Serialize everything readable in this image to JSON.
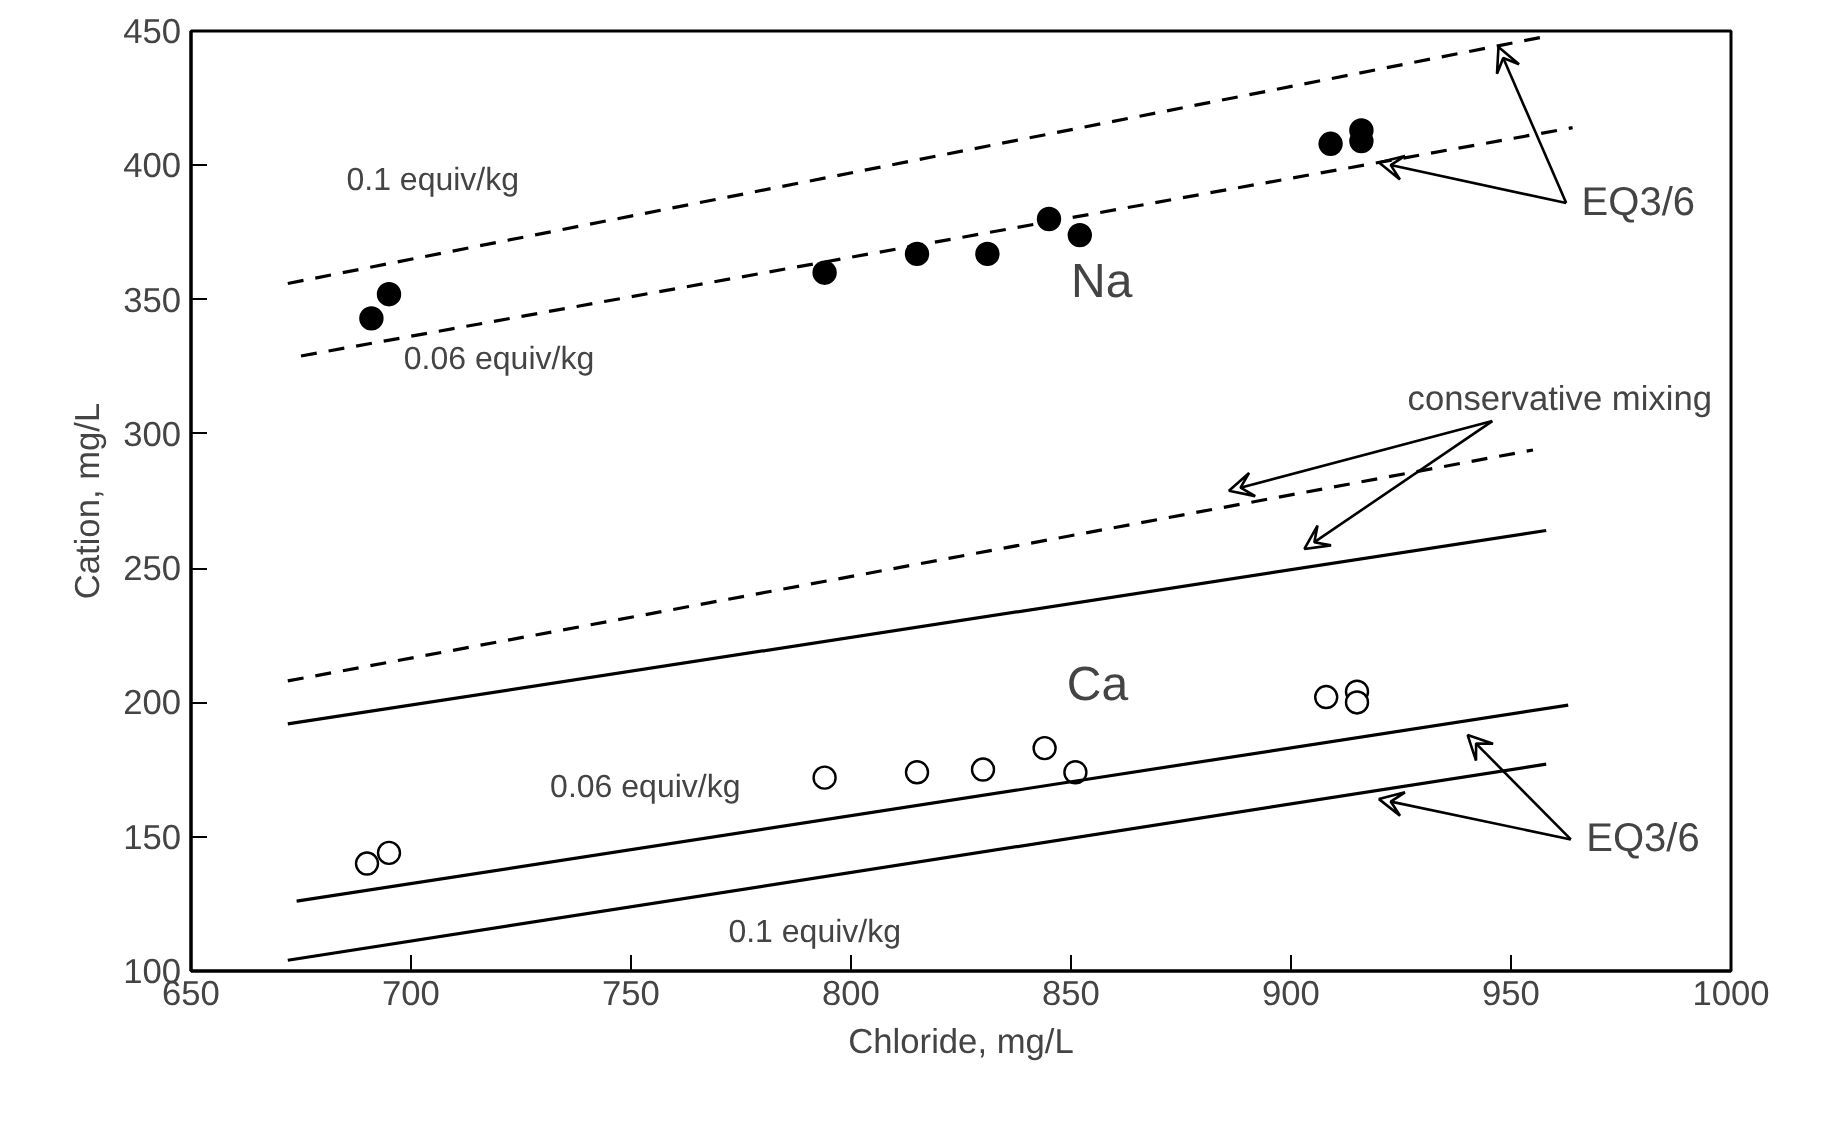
{
  "chart_data": {
    "type": "scatter",
    "xlabel": "Chloride, mg/L",
    "ylabel": "Cation, mg/L",
    "xlim": [
      650,
      1000
    ],
    "ylim": [
      100,
      450
    ],
    "xticks": [
      650,
      700,
      750,
      800,
      850,
      900,
      950,
      1000
    ],
    "yticks": [
      100,
      150,
      200,
      250,
      300,
      350,
      400,
      450
    ],
    "grid": false,
    "series": [
      {
        "name": "Na",
        "marker": "circle",
        "color": "#000000",
        "x": [
          691,
          695,
          794,
          815,
          831,
          845,
          852,
          909,
          916,
          916
        ],
        "values": [
          343,
          352,
          360,
          367,
          367,
          380,
          374,
          408,
          413,
          409
        ]
      },
      {
        "name": "Ca",
        "marker": "circle",
        "color": "#ffffff",
        "x": [
          690,
          695,
          794,
          815,
          830,
          844,
          851,
          908,
          915,
          915
        ],
        "values": [
          140,
          144,
          172,
          174,
          175,
          183,
          174,
          202,
          204,
          200
        ]
      },
      {
        "type": "line",
        "line_style": "dashed",
        "color": "#000000",
        "x": [
          672,
          958
        ],
        "values": [
          356,
          448
        ]
      },
      {
        "type": "line",
        "line_style": "dashed",
        "color": "#000000",
        "x": [
          675,
          964
        ],
        "values": [
          329,
          414
        ]
      },
      {
        "type": "line",
        "line_style": "dashed",
        "color": "#000000",
        "x": [
          672,
          955
        ],
        "values": [
          208,
          294
        ]
      },
      {
        "type": "line",
        "line_style": "solid",
        "color": "#000000",
        "x": [
          672,
          958
        ],
        "values": [
          192,
          264
        ]
      },
      {
        "type": "line",
        "line_style": "solid",
        "color": "#000000",
        "x": [
          674,
          963
        ],
        "values": [
          126,
          199
        ]
      },
      {
        "type": "line",
        "line_style": "solid",
        "color": "#000000",
        "x": [
          672,
          958
        ],
        "values": [
          104,
          177
        ]
      }
    ],
    "annotations": [
      "0.1 equiv/kg",
      "0.06 equiv/kg",
      {
        "text": "EQ3/6",
        "x": 920,
        "y": 401
      },
      "conservative mixing",
      "0.06 equiv/kg",
      "0.1 equiv/kg",
      {
        "text": "EQ3/6",
        "x": 920,
        "y": 164
      }
    ]
  }
}
